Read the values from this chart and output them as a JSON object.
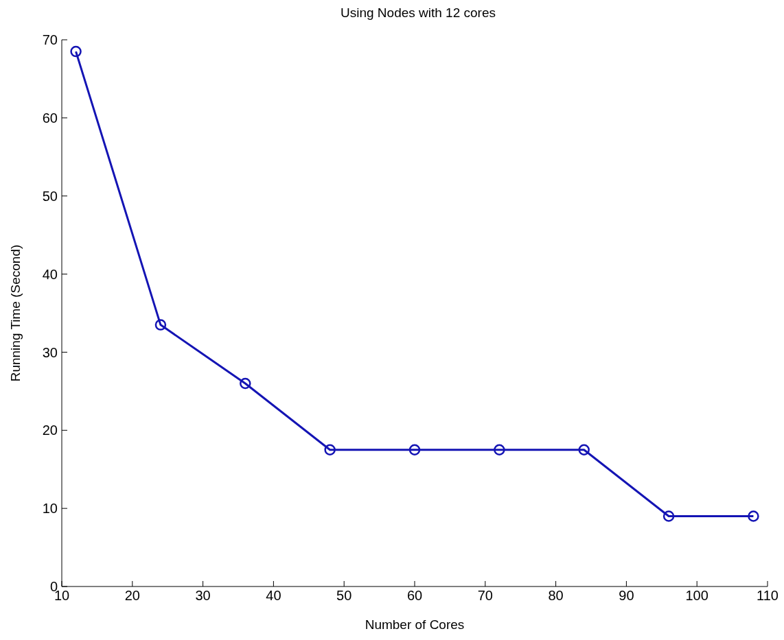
{
  "chart_data": {
    "type": "line",
    "title": "Using Nodes with 12 cores",
    "xlabel": "Number of Cores",
    "ylabel": "Running Time (Second)",
    "x": [
      12,
      24,
      36,
      48,
      60,
      72,
      84,
      96,
      108
    ],
    "series": [
      {
        "color": "#1414b4",
        "values": [
          68.5,
          33.5,
          26,
          17.5,
          17.5,
          17.5,
          17.5,
          9,
          9
        ]
      }
    ],
    "xlim": [
      10,
      110
    ],
    "xticks": [
      10,
      20,
      30,
      40,
      50,
      60,
      70,
      80,
      90,
      100,
      110
    ],
    "ylim": [
      0,
      70
    ],
    "yticks": [
      0,
      10,
      20,
      30,
      40,
      50,
      60,
      70
    ],
    "grid": false,
    "legend": false,
    "marker": "circle",
    "line_style": "solid"
  }
}
